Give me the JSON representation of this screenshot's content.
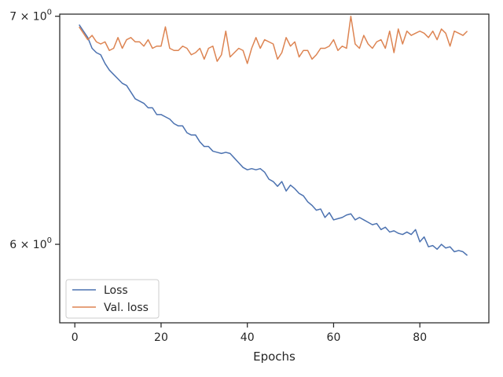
{
  "chart_data": {
    "type": "line",
    "title": "",
    "xlabel": "Epochs",
    "ylabel": "",
    "yscale": "log",
    "xlim": [
      -3.5,
      96
    ],
    "ylim": [
      5.69,
      7.01
    ],
    "x_ticks": [
      0,
      20,
      40,
      60,
      80
    ],
    "y_ticks": [
      6.0,
      7.0
    ],
    "y_tick_labels": [
      {
        "base": "6",
        "exp": "0"
      },
      {
        "base": "7",
        "exp": "0"
      }
    ],
    "grid": false,
    "legend_position": "lower-left",
    "x": [
      1,
      2,
      3,
      4,
      5,
      6,
      7,
      8,
      9,
      10,
      11,
      12,
      13,
      14,
      15,
      16,
      17,
      18,
      19,
      20,
      21,
      22,
      23,
      24,
      25,
      26,
      27,
      28,
      29,
      30,
      31,
      32,
      33,
      34,
      35,
      36,
      37,
      38,
      39,
      40,
      41,
      42,
      43,
      44,
      45,
      46,
      47,
      48,
      49,
      50,
      51,
      52,
      53,
      54,
      55,
      56,
      57,
      58,
      59,
      60,
      61,
      62,
      63,
      64,
      65,
      66,
      67,
      68,
      69,
      70,
      71,
      72,
      73,
      74,
      75,
      76,
      77,
      78,
      79,
      80,
      81,
      82,
      83,
      84,
      85,
      86,
      87,
      88,
      89,
      90,
      91
    ],
    "series": [
      {
        "name": "Loss",
        "color": "#4c72b0",
        "values": [
          6.96,
          6.93,
          6.9,
          6.85,
          6.83,
          6.82,
          6.78,
          6.75,
          6.73,
          6.71,
          6.69,
          6.68,
          6.65,
          6.62,
          6.61,
          6.6,
          6.58,
          6.58,
          6.55,
          6.55,
          6.54,
          6.53,
          6.51,
          6.5,
          6.5,
          6.47,
          6.46,
          6.46,
          6.43,
          6.41,
          6.41,
          6.39,
          6.385,
          6.38,
          6.385,
          6.38,
          6.36,
          6.34,
          6.32,
          6.31,
          6.315,
          6.31,
          6.315,
          6.3,
          6.27,
          6.26,
          6.24,
          6.26,
          6.22,
          6.245,
          6.23,
          6.21,
          6.2,
          6.175,
          6.16,
          6.14,
          6.145,
          6.11,
          6.13,
          6.1,
          6.105,
          6.11,
          6.12,
          6.125,
          6.1,
          6.11,
          6.1,
          6.09,
          6.08,
          6.085,
          6.06,
          6.07,
          6.05,
          6.055,
          6.045,
          6.04,
          6.05,
          6.04,
          6.06,
          6.01,
          6.03,
          5.99,
          5.995,
          5.98,
          6.0,
          5.985,
          5.99,
          5.97,
          5.975,
          5.97,
          5.955
        ]
      },
      {
        "name": "Val. loss",
        "color": "#dd8452",
        "values": [
          6.95,
          6.92,
          6.89,
          6.91,
          6.88,
          6.87,
          6.88,
          6.84,
          6.85,
          6.9,
          6.85,
          6.89,
          6.9,
          6.88,
          6.88,
          6.86,
          6.89,
          6.85,
          6.86,
          6.86,
          6.95,
          6.85,
          6.84,
          6.84,
          6.86,
          6.85,
          6.82,
          6.83,
          6.85,
          6.8,
          6.85,
          6.86,
          6.79,
          6.82,
          6.93,
          6.81,
          6.83,
          6.85,
          6.84,
          6.78,
          6.85,
          6.9,
          6.85,
          6.89,
          6.88,
          6.87,
          6.8,
          6.83,
          6.9,
          6.86,
          6.88,
          6.81,
          6.84,
          6.84,
          6.8,
          6.82,
          6.85,
          6.85,
          6.86,
          6.89,
          6.84,
          6.86,
          6.85,
          7.0,
          6.87,
          6.85,
          6.91,
          6.87,
          6.85,
          6.88,
          6.89,
          6.85,
          6.93,
          6.83,
          6.94,
          6.87,
          6.93,
          6.91,
          6.92,
          6.93,
          6.92,
          6.9,
          6.93,
          6.89,
          6.94,
          6.92,
          6.86,
          6.93,
          6.92,
          6.91,
          6.93
        ]
      }
    ]
  }
}
